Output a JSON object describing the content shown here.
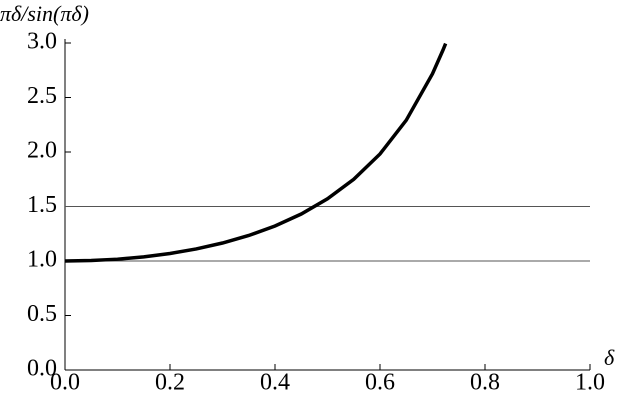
{
  "chart_data": {
    "type": "line",
    "y_label": "πδ/sin(πδ)",
    "x_label": "δ",
    "x": [
      0,
      0.05,
      0.1,
      0.15,
      0.2,
      0.25,
      0.3,
      0.35,
      0.4,
      0.45,
      0.5,
      0.55,
      0.6,
      0.65,
      0.7,
      0.72,
      0.725
    ],
    "series": [
      {
        "color": "#000000",
        "values": [
          1.0,
          1.0041,
          1.0166,
          1.0379,
          1.069,
          1.1107,
          1.165,
          1.234,
          1.3213,
          1.4311,
          1.5708,
          1.7494,
          1.982,
          2.2918,
          2.7183,
          2.9356,
          2.995
        ]
      }
    ],
    "xlim": [
      0,
      1.0
    ],
    "ylim": [
      0,
      3.0
    ],
    "xticks": [
      {
        "value": 0,
        "label": "0.0"
      },
      {
        "value": 0.2,
        "label": "0.2"
      },
      {
        "value": 0.4,
        "label": "0.4"
      },
      {
        "value": 0.6,
        "label": "0.6"
      },
      {
        "value": 0.8,
        "label": "0.8"
      },
      {
        "value": 1.0,
        "label": "1.0"
      }
    ],
    "yticks": [
      {
        "value": 0,
        "label": "0.0"
      },
      {
        "value": 0.5,
        "label": "0.5"
      },
      {
        "value": 1.0,
        "label": "1.0"
      },
      {
        "value": 1.5,
        "label": "1.5"
      },
      {
        "value": 2.0,
        "label": "2.0"
      },
      {
        "value": 2.5,
        "label": "2.5"
      },
      {
        "value": 3.0,
        "label": "3.0"
      }
    ],
    "hlines": [
      1.0,
      1.5
    ]
  }
}
